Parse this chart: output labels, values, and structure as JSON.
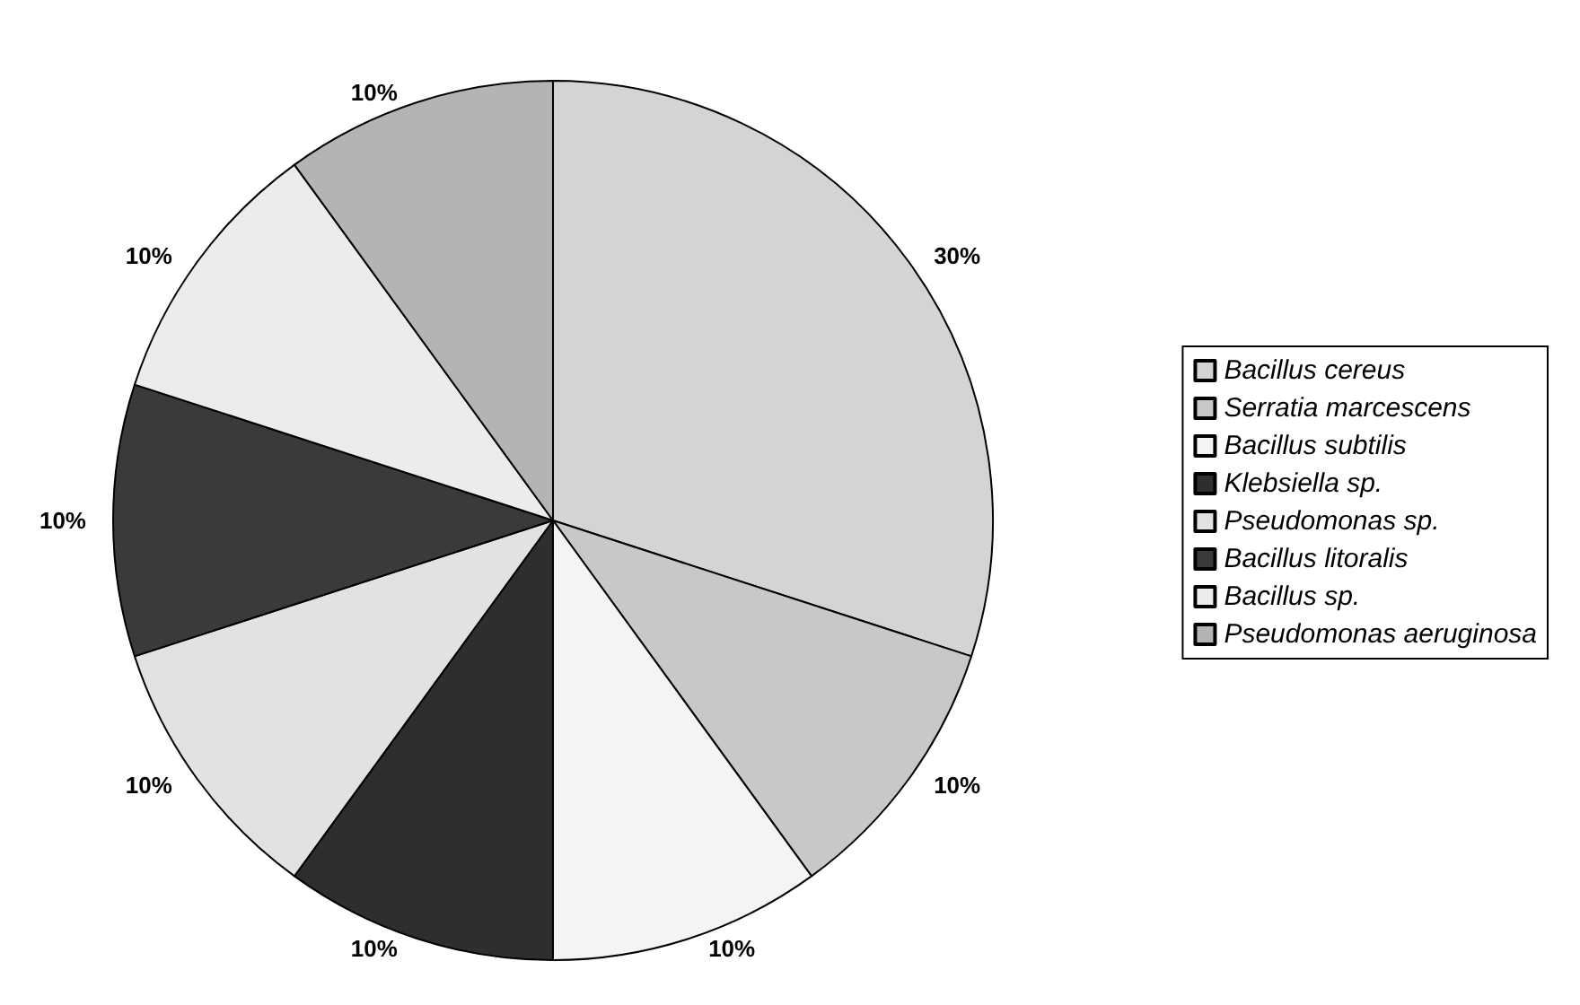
{
  "chart_data": {
    "type": "pie",
    "categories": [
      "Bacillus cereus",
      "Serratia marcescens",
      "Bacillus subtilis",
      "Klebsiella sp.",
      "Pseudomonas sp.",
      "Bacillus litoralis",
      "Bacillus sp.",
      "Pseudomonas aeruginosa"
    ],
    "values": [
      30,
      10,
      10,
      10,
      10,
      10,
      10,
      10
    ],
    "colors": [
      "#d4d4d4",
      "#c8c8c8",
      "#f4f4f4",
      "#2e2e2e",
      "#e2e2e2",
      "#3a3a3a",
      "#ececec",
      "#b4b4b4"
    ],
    "value_labels": [
      "30%",
      "10%",
      "10%",
      "10%",
      "10%",
      "10%",
      "10%",
      "10%"
    ],
    "legend": "right"
  }
}
